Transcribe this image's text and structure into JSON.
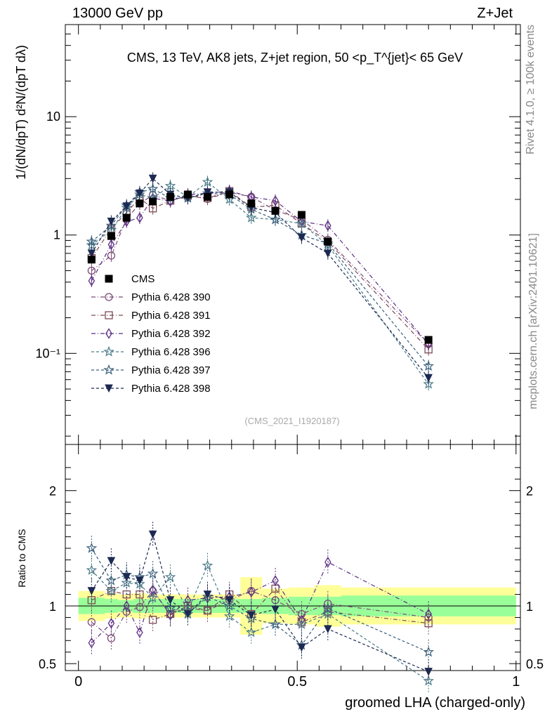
{
  "header": {
    "energy": "13000 GeV pp",
    "process": "Z+Jet",
    "rivet": "Rivet 4.1.0, ≥ 100k events",
    "mcplots": "mcplots.cern.ch [arXiv:2401.10621]",
    "analysis_id": "(CMS_2021_I1920187)"
  },
  "chart_data": {
    "type": "scatter",
    "title": "CMS, 13 TeV, AK8 jets, Z+jet region, 50 <p_T^{jet}< 65 GeV",
    "xlabel": "groomed LHA (charged-only)",
    "ylabel": "1/(dN/dpT) d²N/(dpT dλ)",
    "ratio_ylabel": "Ratio to CMS",
    "x_ticks": [
      "0",
      "0.5",
      "1"
    ],
    "main_y_ticks": [
      "10⁻¹",
      "1",
      "10"
    ],
    "ratio_y_ticks": [
      "0.5",
      "1",
      "2"
    ],
    "xlim": [
      -0.03,
      1.01
    ],
    "ylim_main_log": [
      0.017,
      60
    ],
    "ylim_ratio": [
      0.44,
      2.4
    ],
    "x": [
      0.03,
      0.075,
      0.11,
      0.14,
      0.17,
      0.21,
      0.25,
      0.295,
      0.345,
      0.395,
      0.45,
      0.51,
      0.57,
      0.8
    ],
    "bin_edges": [
      0.0,
      0.06,
      0.09,
      0.125,
      0.155,
      0.19,
      0.23,
      0.27,
      0.32,
      0.37,
      0.42,
      0.48,
      0.54,
      0.6,
      1.0
    ],
    "data": {
      "name": "CMS",
      "values": [
        0.62,
        0.98,
        1.4,
        1.85,
        1.92,
        2.1,
        2.2,
        2.1,
        2.2,
        1.85,
        1.6,
        1.48,
        0.88,
        0.13
      ],
      "band_inner": [
        0.07,
        0.06,
        0.05,
        0.06,
        0.06,
        0.06,
        0.06,
        0.06,
        0.06,
        0.06,
        0.07,
        0.08,
        0.08,
        0.09
      ],
      "band_outer": [
        0.13,
        0.11,
        0.1,
        0.11,
        0.1,
        0.1,
        0.1,
        0.1,
        0.1,
        0.25,
        0.15,
        0.16,
        0.18,
        0.16
      ]
    },
    "series": [
      {
        "name": "Pythia 6.428 390",
        "color": "#7a4a78",
        "marker": "circle",
        "dash": "6,3,1,3",
        "values": [
          0.5,
          0.67,
          1.37,
          1.84,
          2.18,
          1.95,
          2.15,
          2.02,
          2.3,
          2.1,
          1.62,
          1.35,
          0.91,
          0.12
        ]
      },
      {
        "name": "Pythia 6.428 391",
        "color": "#7d4a55",
        "marker": "square",
        "dash": "6,3,1,3",
        "values": [
          0.64,
          1.13,
          1.55,
          2.05,
          1.68,
          1.95,
          2.15,
          2.05,
          2.35,
          1.72,
          1.78,
          1.25,
          0.88,
          0.108
        ]
      },
      {
        "name": "Pythia 6.428 392",
        "color": "#5b2d82",
        "marker": "diamond",
        "dash": "6,3,1,3",
        "values": [
          0.41,
          0.83,
          1.3,
          1.4,
          2.05,
          1.93,
          2.2,
          2.25,
          2.35,
          2.1,
          1.95,
          1.3,
          1.2,
          0.12
        ]
      },
      {
        "name": "Pythia 6.428 396",
        "color": "#4a7a88",
        "marker": "star",
        "dash": "4,3",
        "values": [
          0.82,
          1.1,
          1.7,
          2.2,
          2.05,
          2.6,
          2.1,
          2.8,
          2.0,
          1.4,
          1.35,
          1.25,
          0.82,
          0.055
        ]
      },
      {
        "name": "Pythia 6.428 397",
        "color": "#3a5f7a",
        "marker": "star",
        "dash": "4,3",
        "values": [
          0.88,
          1.2,
          1.78,
          2.3,
          2.45,
          2.05,
          2.05,
          2.25,
          2.2,
          1.65,
          1.35,
          1.0,
          0.85,
          0.078
        ]
      },
      {
        "name": "Pythia 6.428 398",
        "color": "#1c2a52",
        "marker": "triangle-down",
        "dash": "4,3",
        "values": [
          0.7,
          1.3,
          1.75,
          2.25,
          3.0,
          2.2,
          2.05,
          2.3,
          2.3,
          1.7,
          1.55,
          0.95,
          0.7,
          0.062
        ]
      }
    ],
    "ratios": [
      [
        0.86,
        0.72,
        0.95,
        0.99,
        1.13,
        0.93,
        0.98,
        0.96,
        1.05,
        1.13,
        1.05,
        0.93,
        1.02,
        0.9
      ],
      [
        1.05,
        1.13,
        1.1,
        1.1,
        0.88,
        0.93,
        1.0,
        0.96,
        1.1,
        0.93,
        1.15,
        0.86,
        0.95,
        0.85
      ],
      [
        0.68,
        0.85,
        1.0,
        0.77,
        1.14,
        0.92,
        1.05,
        1.07,
        1.08,
        1.12,
        1.22,
        0.88,
        1.38,
        0.93
      ],
      [
        1.31,
        1.13,
        1.2,
        1.19,
        1.07,
        1.25,
        0.96,
        1.35,
        0.91,
        0.77,
        0.84,
        0.84,
        0.93,
        0.35
      ],
      [
        1.5,
        1.22,
        1.27,
        1.25,
        1.28,
        0.98,
        0.93,
        1.08,
        1.0,
        0.89,
        0.84,
        0.66,
        0.98,
        0.6
      ],
      [
        1.13,
        1.39,
        1.25,
        1.22,
        1.62,
        1.05,
        0.93,
        1.1,
        1.05,
        0.92,
        0.97,
        0.64,
        0.8,
        0.43
      ]
    ]
  }
}
